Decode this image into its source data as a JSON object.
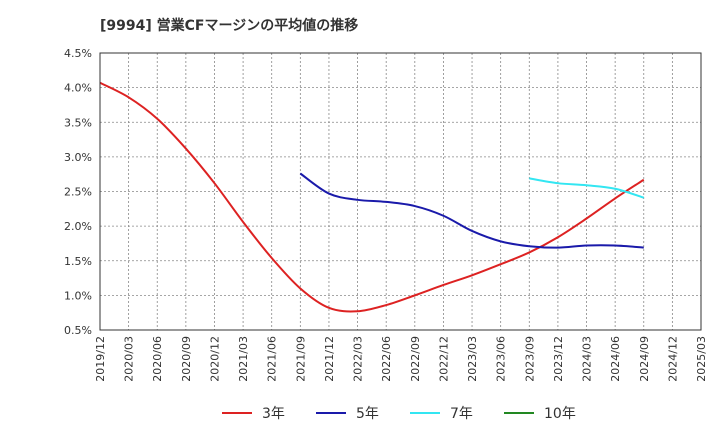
{
  "chart_data": {
    "type": "line",
    "title": "[9994]  営業CFマージンの平均値の推移",
    "x_ticks": [
      "2019/12",
      "2020/03",
      "2020/06",
      "2020/09",
      "2020/12",
      "2021/03",
      "2021/06",
      "2021/09",
      "2021/12",
      "2022/03",
      "2022/06",
      "2022/09",
      "2022/12",
      "2023/03",
      "2023/06",
      "2023/09",
      "2023/12",
      "2024/03",
      "2024/06",
      "2024/09",
      "2024/12",
      "2025/03"
    ],
    "y_ticks": [
      "0.5%",
      "1.0%",
      "1.5%",
      "2.0%",
      "2.5%",
      "3.0%",
      "3.5%",
      "4.0%",
      "4.5%"
    ],
    "ylim": [
      0.5,
      4.5
    ],
    "grid": true,
    "legend_position": "bottom",
    "series": [
      {
        "name": "3年",
        "color": "#dd2222",
        "points": [
          [
            "2019/12",
            4.07
          ],
          [
            "2020/03",
            3.86
          ],
          [
            "2020/06",
            3.55
          ],
          [
            "2020/09",
            3.12
          ],
          [
            "2020/12",
            2.62
          ],
          [
            "2021/03",
            2.06
          ],
          [
            "2021/06",
            1.54
          ],
          [
            "2021/09",
            1.1
          ],
          [
            "2021/12",
            0.82
          ],
          [
            "2022/03",
            0.77
          ],
          [
            "2022/06",
            0.86
          ],
          [
            "2022/09",
            1.0
          ],
          [
            "2022/12",
            1.15
          ],
          [
            "2023/03",
            1.29
          ],
          [
            "2023/06",
            1.45
          ],
          [
            "2023/09",
            1.62
          ],
          [
            "2023/12",
            1.84
          ],
          [
            "2024/03",
            2.11
          ],
          [
            "2024/06",
            2.4
          ],
          [
            "2024/09",
            2.67
          ]
        ]
      },
      {
        "name": "5年",
        "color": "#1a1aaa",
        "points": [
          [
            "2021/09",
            2.76
          ],
          [
            "2021/12",
            2.47
          ],
          [
            "2022/03",
            2.38
          ],
          [
            "2022/06",
            2.35
          ],
          [
            "2022/09",
            2.29
          ],
          [
            "2022/12",
            2.15
          ],
          [
            "2023/03",
            1.93
          ],
          [
            "2023/06",
            1.78
          ],
          [
            "2023/09",
            1.71
          ],
          [
            "2023/12",
            1.69
          ],
          [
            "2024/03",
            1.72
          ],
          [
            "2024/06",
            1.72
          ],
          [
            "2024/09",
            1.69
          ]
        ]
      },
      {
        "name": "7年",
        "color": "#33e6f2",
        "points": [
          [
            "2023/09",
            2.69
          ],
          [
            "2023/12",
            2.62
          ],
          [
            "2024/03",
            2.59
          ],
          [
            "2024/06",
            2.54
          ],
          [
            "2024/09",
            2.41
          ]
        ]
      },
      {
        "name": "10年",
        "color": "#228822",
        "points": []
      }
    ]
  }
}
